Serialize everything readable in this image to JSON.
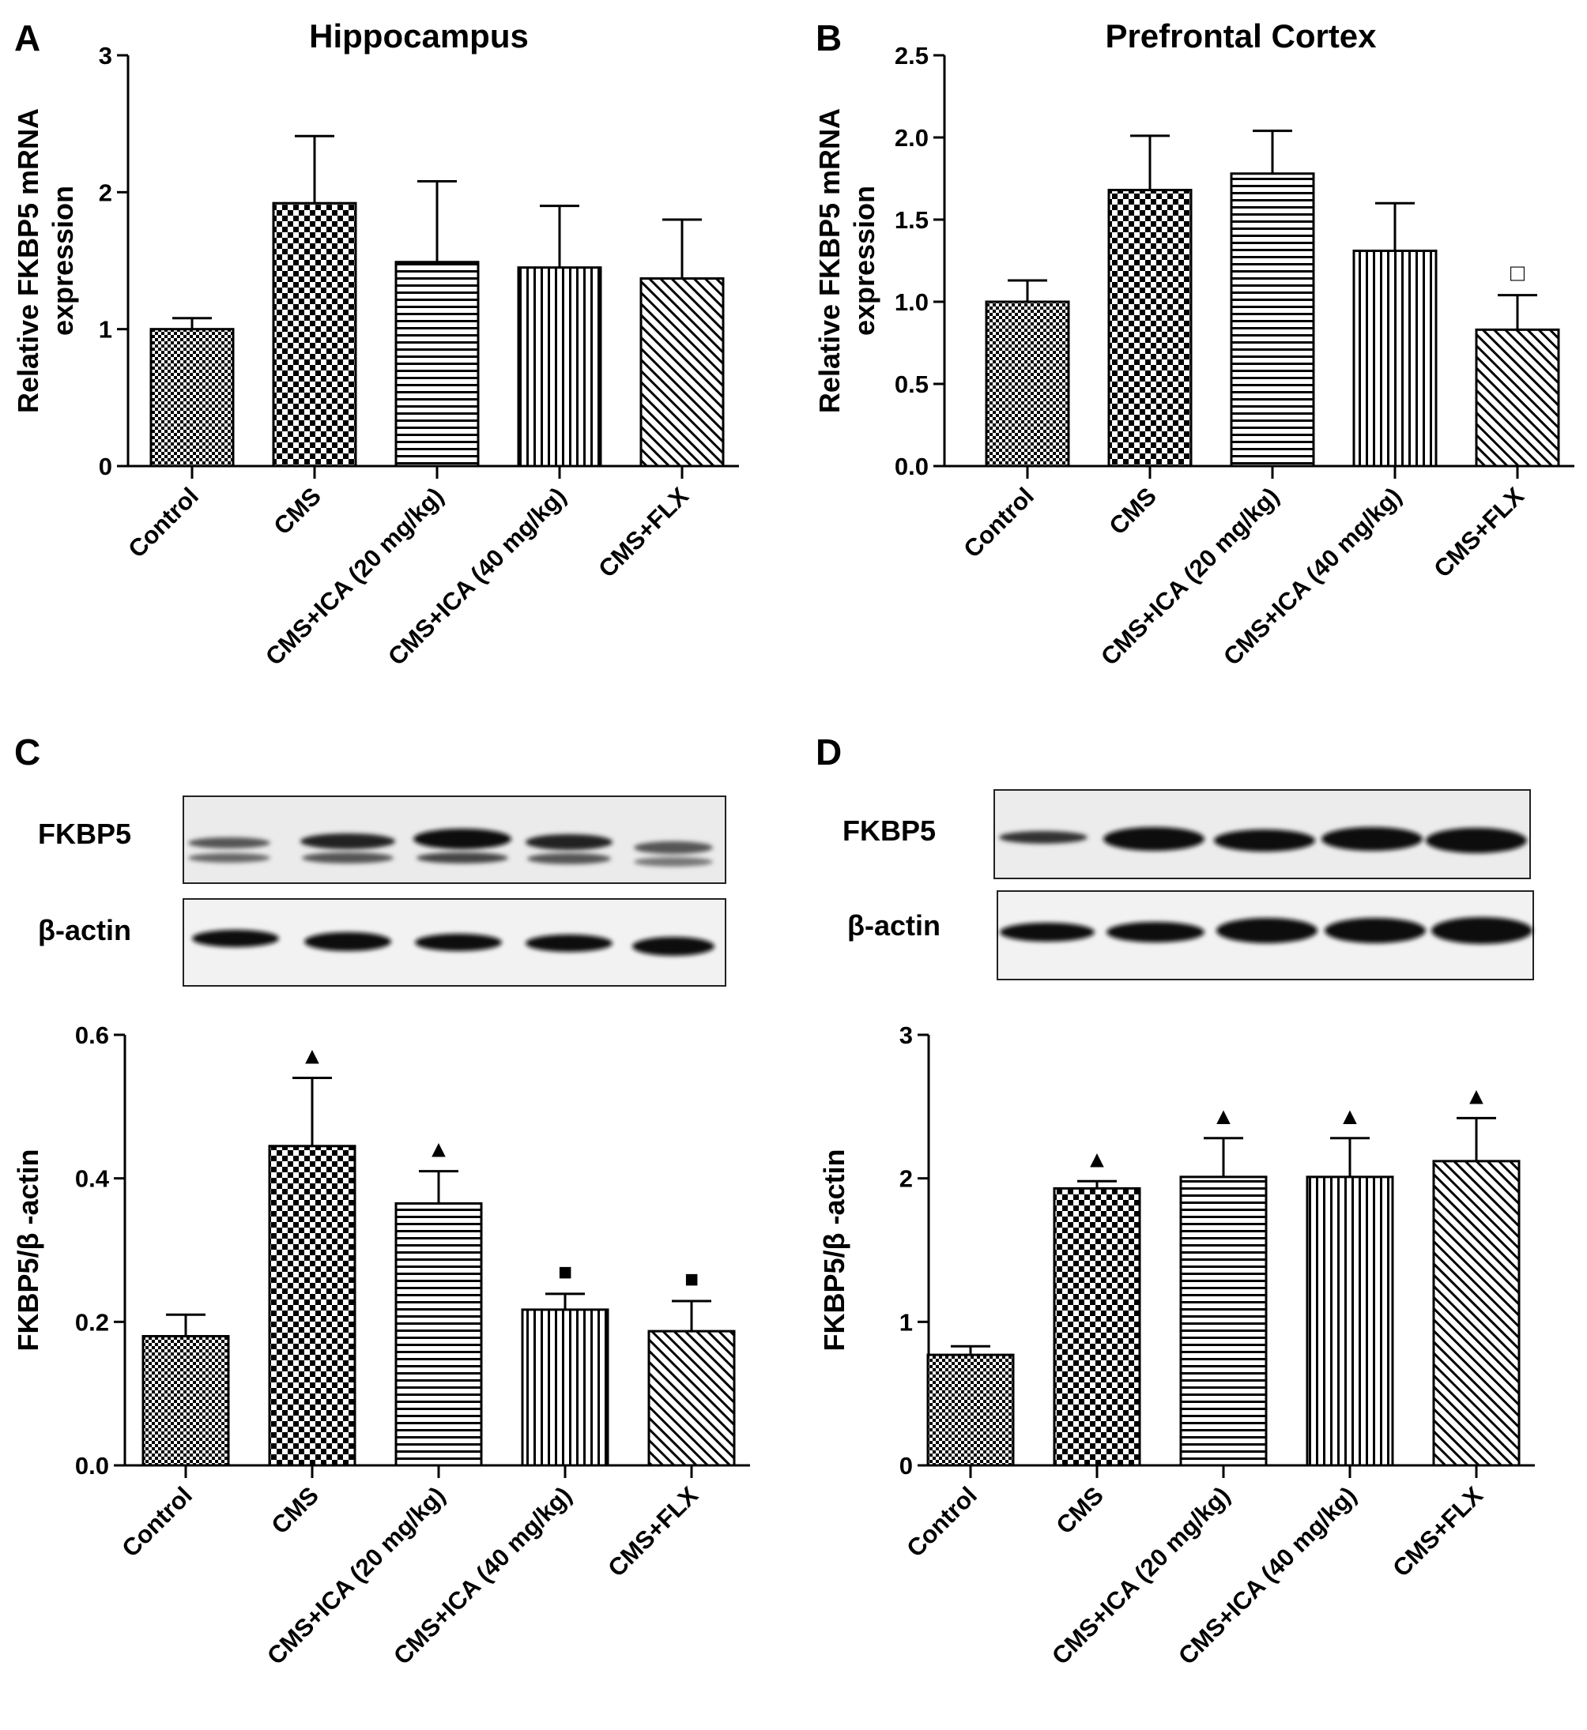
{
  "chart_data": [
    {
      "panel": "A",
      "type": "bar",
      "title": "Hippocampus",
      "ylabel": [
        "Relative FKBP5 mRNA",
        "expression"
      ],
      "ylim": [
        0,
        3
      ],
      "yticks": [
        "0",
        "1",
        "2",
        "3"
      ],
      "categories": [
        "Control",
        "CMS",
        "CMS+ICA (20 mg/kg)",
        "CMS+ICA (40 mg/kg)",
        "CMS+FLX"
      ],
      "values": [
        1.0,
        1.92,
        1.49,
        1.45,
        1.37
      ],
      "errors": [
        0.08,
        0.49,
        0.59,
        0.45,
        0.43
      ],
      "annotations": [
        "",
        "",
        "",
        "",
        ""
      ],
      "patterns": [
        "fine-check",
        "check",
        "horizontal",
        "vertical",
        "diagonal"
      ]
    },
    {
      "panel": "B",
      "type": "bar",
      "title": "Prefrontal Cortex",
      "ylabel": [
        "Relative FKBP5 mRNA",
        "expression"
      ],
      "ylim": [
        0,
        2.5
      ],
      "yticks": [
        "0.0",
        "0.5",
        "1.0",
        "1.5",
        "2.0",
        "2.5"
      ],
      "categories": [
        "Control",
        "CMS",
        "CMS+ICA (20 mg/kg)",
        "CMS+ICA (40 mg/kg)",
        "CMS+FLX"
      ],
      "values": [
        1.0,
        1.68,
        1.78,
        1.31,
        0.83
      ],
      "errors": [
        0.13,
        0.33,
        0.26,
        0.29,
        0.21
      ],
      "annotations": [
        "",
        "",
        "",
        "",
        "□"
      ],
      "patterns": [
        "fine-check",
        "check",
        "horizontal",
        "vertical",
        "diagonal"
      ]
    },
    {
      "panel": "C",
      "type": "bar",
      "title": "",
      "ylabel": [
        "FKBP5/β -actin"
      ],
      "ylim": [
        0,
        0.6
      ],
      "yticks": [
        "0.0",
        "0.2",
        "0.4",
        "0.6"
      ],
      "categories": [
        "Control",
        "CMS",
        "CMS+ICA (20 mg/kg)",
        "CMS+ICA (40 mg/kg)",
        "CMS+FLX"
      ],
      "values": [
        0.18,
        0.445,
        0.365,
        0.217,
        0.187
      ],
      "errors": [
        0.03,
        0.095,
        0.045,
        0.022,
        0.042
      ],
      "annotations": [
        "",
        "▲",
        "▲",
        "■",
        "■"
      ],
      "patterns": [
        "fine-check",
        "check",
        "horizontal",
        "vertical",
        "diagonal"
      ],
      "blot_labels": [
        "FKBP5",
        "β-actin"
      ]
    },
    {
      "panel": "D",
      "type": "bar",
      "title": "",
      "ylabel": [
        "FKBP5/β -actin"
      ],
      "ylim": [
        0,
        3
      ],
      "yticks": [
        "0",
        "1",
        "2",
        "3"
      ],
      "categories": [
        "Control",
        "CMS",
        "CMS+ICA (20 mg/kg)",
        "CMS+ICA (40 mg/kg)",
        "CMS+FLX"
      ],
      "values": [
        0.77,
        1.93,
        2.01,
        2.01,
        2.12
      ],
      "errors": [
        0.06,
        0.05,
        0.27,
        0.27,
        0.3
      ],
      "annotations": [
        "",
        "▲",
        "▲",
        "▲",
        "▲"
      ],
      "patterns": [
        "fine-check",
        "check",
        "horizontal",
        "vertical",
        "diagonal"
      ],
      "blot_labels": [
        "FKBP5",
        "β-actin"
      ]
    }
  ]
}
